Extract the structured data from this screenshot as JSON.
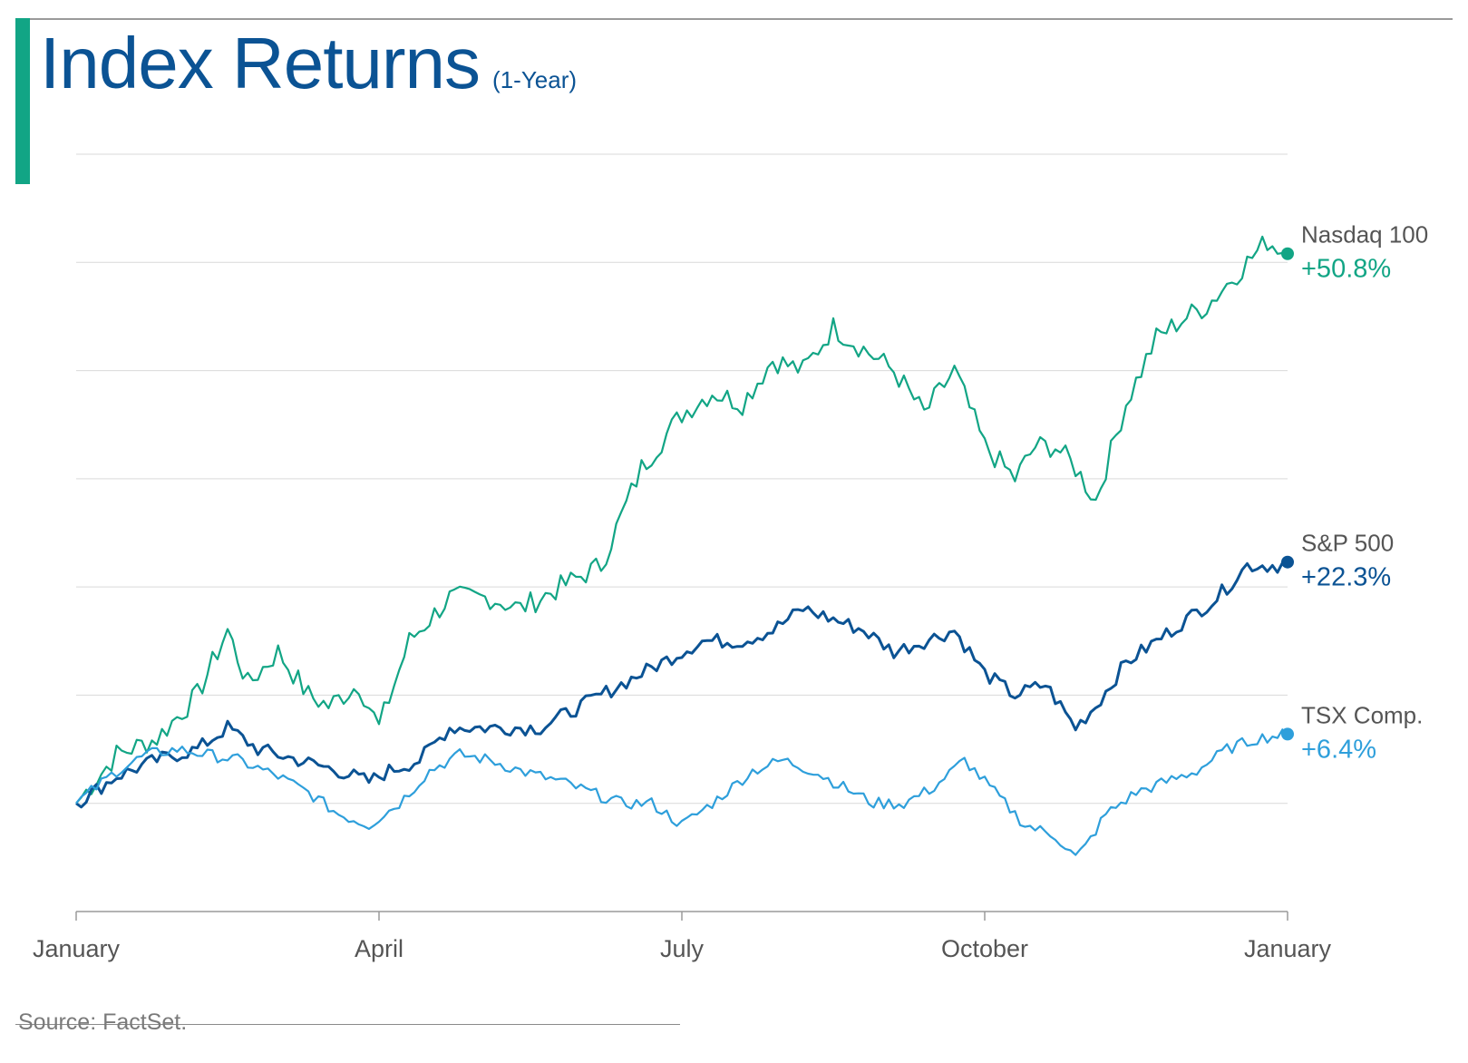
{
  "header": {
    "title": "Index Returns",
    "subtitle": "(1-Year)"
  },
  "footer": {
    "source": "Source: FactSet."
  },
  "colors": {
    "accent": "#12a585",
    "title": "#0b5394",
    "grid": "#d9d9d9",
    "axis": "#9a9a9a"
  },
  "chart_data": {
    "type": "line",
    "title": "Index Returns",
    "subtitle": "(1-Year)",
    "xlabel": "",
    "ylabel": "",
    "x_tick_labels": [
      "January",
      "April",
      "July",
      "October",
      "January"
    ],
    "x_tick_months": [
      0,
      3,
      6,
      9,
      12
    ],
    "x_range_months": [
      0,
      12
    ],
    "y_range_percent": [
      -10,
      60
    ],
    "y_grid_step_percent": 10,
    "grid": true,
    "legend": "direct labels at right end of each line",
    "series": [
      {
        "name": "Nasdaq 100",
        "end_label": "+50.8%",
        "end_value": 50.8,
        "color": "#12a585",
        "points": [
          [
            0,
            0
          ],
          [
            0.4,
            4.5
          ],
          [
            0.8,
            6
          ],
          [
            1.2,
            10
          ],
          [
            1.5,
            16
          ],
          [
            1.7,
            11
          ],
          [
            2.0,
            14
          ],
          [
            2.3,
            10
          ],
          [
            2.5,
            9
          ],
          [
            2.8,
            11
          ],
          [
            3.0,
            7
          ],
          [
            3.3,
            15
          ],
          [
            3.7,
            19
          ],
          [
            4.1,
            19
          ],
          [
            4.4,
            18
          ],
          [
            4.8,
            20
          ],
          [
            5.2,
            22
          ],
          [
            5.6,
            31
          ],
          [
            6.0,
            36
          ],
          [
            6.3,
            38
          ],
          [
            6.6,
            37
          ],
          [
            6.9,
            41
          ],
          [
            7.2,
            40
          ],
          [
            7.5,
            44
          ],
          [
            7.8,
            42
          ],
          [
            8.1,
            40
          ],
          [
            8.4,
            36
          ],
          [
            8.7,
            40
          ],
          [
            9.0,
            33
          ],
          [
            9.3,
            30
          ],
          [
            9.5,
            33
          ],
          [
            9.7,
            33
          ],
          [
            9.9,
            31
          ],
          [
            10.1,
            28
          ],
          [
            10.4,
            37
          ],
          [
            10.7,
            43
          ],
          [
            11.0,
            45
          ],
          [
            11.2,
            46
          ],
          [
            11.5,
            49
          ],
          [
            11.8,
            52
          ],
          [
            12.0,
            50.8
          ]
        ]
      },
      {
        "name": "S&P 500",
        "end_label": "+22.3%",
        "end_value": 22.3,
        "color": "#0b5394",
        "points": [
          [
            0,
            0
          ],
          [
            0.4,
            2.5
          ],
          [
            0.8,
            4
          ],
          [
            1.2,
            5
          ],
          [
            1.5,
            7
          ],
          [
            1.8,
            5
          ],
          [
            2.2,
            4
          ],
          [
            2.6,
            3
          ],
          [
            2.9,
            2
          ],
          [
            3.1,
            3
          ],
          [
            3.4,
            4
          ],
          [
            3.7,
            7
          ],
          [
            4.1,
            7
          ],
          [
            4.6,
            7
          ],
          [
            5.0,
            9
          ],
          [
            5.4,
            11
          ],
          [
            5.8,
            13
          ],
          [
            6.2,
            15
          ],
          [
            6.6,
            15
          ],
          [
            6.9,
            16
          ],
          [
            7.2,
            18
          ],
          [
            7.5,
            17
          ],
          [
            7.8,
            16
          ],
          [
            8.1,
            14
          ],
          [
            8.4,
            15
          ],
          [
            8.7,
            16
          ],
          [
            9.0,
            12
          ],
          [
            9.3,
            10
          ],
          [
            9.6,
            11
          ],
          [
            9.9,
            7
          ],
          [
            10.1,
            9
          ],
          [
            10.4,
            13
          ],
          [
            10.7,
            15
          ],
          [
            11.0,
            17
          ],
          [
            11.3,
            19
          ],
          [
            11.6,
            22
          ],
          [
            11.9,
            22
          ],
          [
            12.0,
            22.3
          ]
        ]
      },
      {
        "name": "TSX Comp.",
        "end_label": "+6.4%",
        "end_value": 6.4,
        "color": "#2e9fdb",
        "points": [
          [
            0,
            0
          ],
          [
            0.4,
            3
          ],
          [
            0.7,
            4.5
          ],
          [
            1.0,
            5
          ],
          [
            1.3,
            4.5
          ],
          [
            1.6,
            4
          ],
          [
            2.0,
            2.5
          ],
          [
            2.3,
            1
          ],
          [
            2.6,
            -1
          ],
          [
            2.9,
            -2
          ],
          [
            3.2,
            0
          ],
          [
            3.5,
            3
          ],
          [
            3.8,
            4.5
          ],
          [
            4.1,
            4
          ],
          [
            4.4,
            3
          ],
          [
            4.8,
            2
          ],
          [
            5.1,
            1
          ],
          [
            5.4,
            0
          ],
          [
            5.7,
            0
          ],
          [
            6.0,
            -2
          ],
          [
            6.3,
            0
          ],
          [
            6.7,
            3
          ],
          [
            7.0,
            4
          ],
          [
            7.3,
            3
          ],
          [
            7.6,
            1.5
          ],
          [
            7.9,
            0
          ],
          [
            8.2,
            0
          ],
          [
            8.5,
            1.5
          ],
          [
            8.8,
            4
          ],
          [
            9.1,
            1
          ],
          [
            9.4,
            -2
          ],
          [
            9.7,
            -3
          ],
          [
            9.9,
            -5
          ],
          [
            10.0,
            -4
          ],
          [
            10.2,
            -1
          ],
          [
            10.5,
            1
          ],
          [
            10.8,
            2
          ],
          [
            11.1,
            3
          ],
          [
            11.4,
            5
          ],
          [
            11.7,
            6
          ],
          [
            12.0,
            6.4
          ]
        ]
      }
    ]
  }
}
